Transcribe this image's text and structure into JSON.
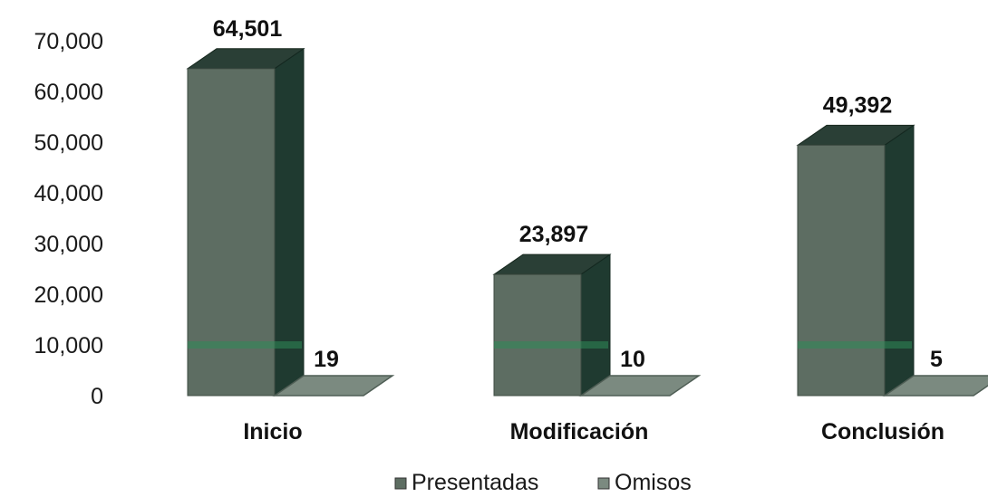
{
  "chart_data": {
    "type": "bar",
    "categories": [
      "Inicio",
      "Modificación",
      "Conclusión"
    ],
    "series": [
      {
        "name": "Presentadas",
        "values": [
          64501,
          23897,
          49392
        ],
        "labels": [
          "64,501",
          "23,897",
          "49,392"
        ]
      },
      {
        "name": "Omisos",
        "values": [
          19,
          10,
          5
        ],
        "labels": [
          "19",
          "10",
          "5"
        ]
      }
    ],
    "ylim": [
      0,
      70000
    ],
    "yticks": [
      0,
      10000,
      20000,
      30000,
      40000,
      50000,
      60000,
      70000
    ],
    "ytick_labels": [
      "0",
      "10,000",
      "20,000",
      "30,000",
      "40,000",
      "50,000",
      "60,000",
      "70,000"
    ],
    "legend_position": "bottom",
    "grid": false,
    "style": "3d-columns",
    "colors": {
      "presentadas_front": "#5d6d62",
      "presentadas_side": "#1f3a30",
      "presentadas_top": "#2a3f36",
      "omisos_fill": "#7b8a80",
      "omisos_edge": "#4f5e55",
      "band": "#2e8b57"
    }
  }
}
